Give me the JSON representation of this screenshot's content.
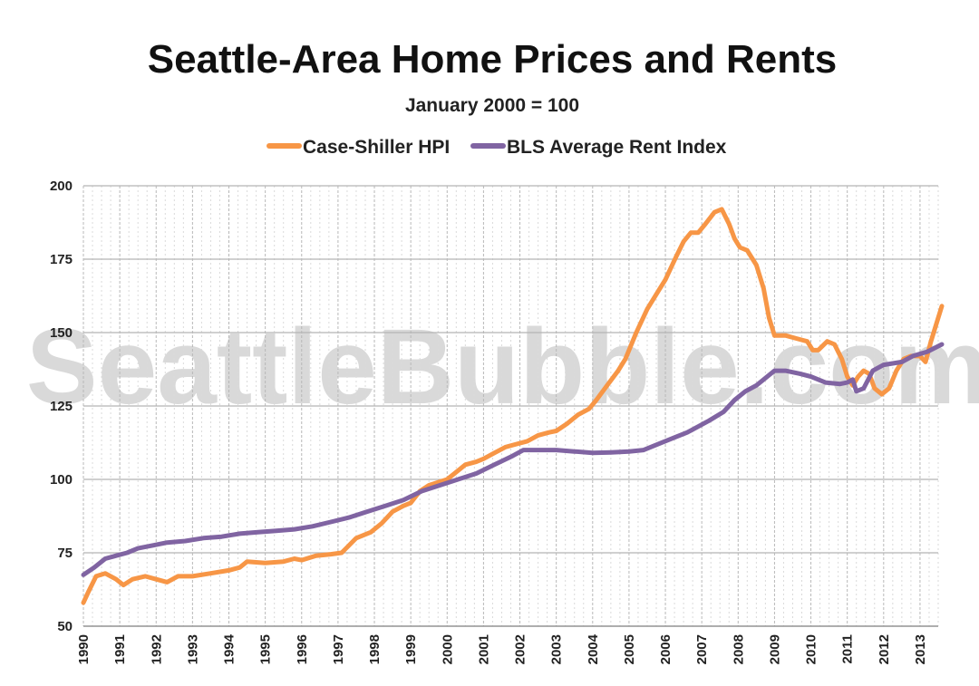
{
  "chart_data": {
    "type": "line",
    "title": "Seattle-Area Home Prices and Rents",
    "subtitle": "January 2000 = 100",
    "watermark": "SeattleBubble.com",
    "xlabel": "",
    "ylabel": "",
    "xlim": [
      1990,
      2013.5
    ],
    "ylim": [
      50,
      200
    ],
    "yticks": [
      50,
      75,
      100,
      125,
      150,
      175,
      200
    ],
    "xticks": [
      "1990",
      "1991",
      "1992",
      "1993",
      "1994",
      "1995",
      "1996",
      "1997",
      "1998",
      "1999",
      "2000",
      "2001",
      "2002",
      "2003",
      "2004",
      "2005",
      "2006",
      "2007",
      "2008",
      "2009",
      "2010",
      "2011",
      "2012",
      "2013"
    ],
    "grid": true,
    "legend_position": "top-center",
    "series": [
      {
        "name": "Case-Shiller HPI",
        "color": "#f79646",
        "points": [
          [
            1990.0,
            58
          ],
          [
            1990.15,
            62
          ],
          [
            1990.35,
            67
          ],
          [
            1990.6,
            68
          ],
          [
            1990.9,
            66
          ],
          [
            1991.1,
            64
          ],
          [
            1991.35,
            66
          ],
          [
            1991.7,
            67
          ],
          [
            1992.0,
            66
          ],
          [
            1992.3,
            65
          ],
          [
            1992.6,
            67
          ],
          [
            1993.0,
            67
          ],
          [
            1993.5,
            68
          ],
          [
            1994.0,
            69
          ],
          [
            1994.3,
            70
          ],
          [
            1994.5,
            72
          ],
          [
            1995.0,
            71.5
          ],
          [
            1995.5,
            72
          ],
          [
            1995.8,
            73
          ],
          [
            1996.0,
            72.5
          ],
          [
            1996.4,
            74
          ],
          [
            1996.8,
            74.5
          ],
          [
            1997.1,
            75
          ],
          [
            1997.5,
            80
          ],
          [
            1997.9,
            82
          ],
          [
            1998.2,
            85
          ],
          [
            1998.5,
            89
          ],
          [
            1998.8,
            91
          ],
          [
            1999.0,
            92
          ],
          [
            1999.25,
            96
          ],
          [
            1999.5,
            98
          ],
          [
            2000.0,
            100
          ],
          [
            2000.3,
            103
          ],
          [
            2000.5,
            105
          ],
          [
            2000.8,
            106
          ],
          [
            2001.0,
            107
          ],
          [
            2001.3,
            109
          ],
          [
            2001.6,
            111
          ],
          [
            2001.9,
            112
          ],
          [
            2002.2,
            113
          ],
          [
            2002.5,
            115
          ],
          [
            2002.8,
            116
          ],
          [
            2003.0,
            116.5
          ],
          [
            2003.3,
            119
          ],
          [
            2003.6,
            122
          ],
          [
            2003.9,
            124
          ],
          [
            2004.1,
            127
          ],
          [
            2004.4,
            132
          ],
          [
            2004.7,
            137
          ],
          [
            2004.9,
            141
          ],
          [
            2005.2,
            150
          ],
          [
            2005.5,
            158
          ],
          [
            2005.8,
            164
          ],
          [
            2006.0,
            168
          ],
          [
            2006.3,
            176
          ],
          [
            2006.5,
            181
          ],
          [
            2006.7,
            184
          ],
          [
            2006.9,
            184
          ],
          [
            2007.1,
            187
          ],
          [
            2007.35,
            191
          ],
          [
            2007.55,
            192
          ],
          [
            2007.75,
            187
          ],
          [
            2007.9,
            182
          ],
          [
            2008.05,
            179
          ],
          [
            2008.25,
            178
          ],
          [
            2008.5,
            173
          ],
          [
            2008.7,
            165
          ],
          [
            2008.85,
            155
          ],
          [
            2009.0,
            149
          ],
          [
            2009.3,
            149
          ],
          [
            2009.6,
            148
          ],
          [
            2009.9,
            147
          ],
          [
            2010.05,
            144
          ],
          [
            2010.2,
            144
          ],
          [
            2010.45,
            147
          ],
          [
            2010.65,
            146
          ],
          [
            2010.85,
            141
          ],
          [
            2011.0,
            135
          ],
          [
            2011.15,
            132
          ],
          [
            2011.3,
            135
          ],
          [
            2011.45,
            137
          ],
          [
            2011.6,
            136
          ],
          [
            2011.75,
            131
          ],
          [
            2011.95,
            129
          ],
          [
            2012.15,
            131
          ],
          [
            2012.35,
            137
          ],
          [
            2012.55,
            141
          ],
          [
            2012.75,
            142
          ],
          [
            2013.0,
            142
          ],
          [
            2013.15,
            140
          ],
          [
            2013.3,
            147
          ],
          [
            2013.45,
            153
          ],
          [
            2013.6,
            159
          ]
        ]
      },
      {
        "name": "BLS Average Rent Index",
        "color": "#8064a2",
        "points": [
          [
            1990.0,
            67.5
          ],
          [
            1990.3,
            70
          ],
          [
            1990.6,
            73
          ],
          [
            1990.9,
            74
          ],
          [
            1991.2,
            75
          ],
          [
            1991.5,
            76.5
          ],
          [
            1991.9,
            77.5
          ],
          [
            1992.3,
            78.5
          ],
          [
            1992.8,
            79
          ],
          [
            1993.3,
            80
          ],
          [
            1993.8,
            80.5
          ],
          [
            1994.3,
            81.5
          ],
          [
            1994.8,
            82
          ],
          [
            1995.3,
            82.5
          ],
          [
            1995.8,
            83
          ],
          [
            1996.3,
            84
          ],
          [
            1996.8,
            85.5
          ],
          [
            1997.3,
            87
          ],
          [
            1997.8,
            89
          ],
          [
            1998.3,
            91
          ],
          [
            1998.8,
            93
          ],
          [
            1999.3,
            96
          ],
          [
            1999.8,
            98
          ],
          [
            2000.3,
            100
          ],
          [
            2000.8,
            102
          ],
          [
            2001.3,
            105
          ],
          [
            2001.8,
            108
          ],
          [
            2002.1,
            110
          ],
          [
            2002.5,
            110
          ],
          [
            2003.0,
            110
          ],
          [
            2003.5,
            109.5
          ],
          [
            2004.0,
            109
          ],
          [
            2004.5,
            109.2
          ],
          [
            2005.0,
            109.5
          ],
          [
            2005.4,
            110
          ],
          [
            2005.8,
            112
          ],
          [
            2006.2,
            114
          ],
          [
            2006.6,
            116
          ],
          [
            2006.9,
            118
          ],
          [
            2007.2,
            120
          ],
          [
            2007.6,
            123
          ],
          [
            2007.9,
            127
          ],
          [
            2008.2,
            130
          ],
          [
            2008.5,
            132
          ],
          [
            2008.8,
            135
          ],
          [
            2009.0,
            137
          ],
          [
            2009.3,
            137
          ],
          [
            2009.7,
            136
          ],
          [
            2010.0,
            135
          ],
          [
            2010.4,
            133
          ],
          [
            2010.8,
            132.5
          ],
          [
            2011.0,
            133
          ],
          [
            2011.15,
            134
          ],
          [
            2011.25,
            130
          ],
          [
            2011.45,
            131
          ],
          [
            2011.7,
            137
          ],
          [
            2012.0,
            139
          ],
          [
            2012.5,
            140
          ],
          [
            2012.8,
            142
          ],
          [
            2013.2,
            143.5
          ],
          [
            2013.6,
            146
          ]
        ]
      }
    ]
  }
}
